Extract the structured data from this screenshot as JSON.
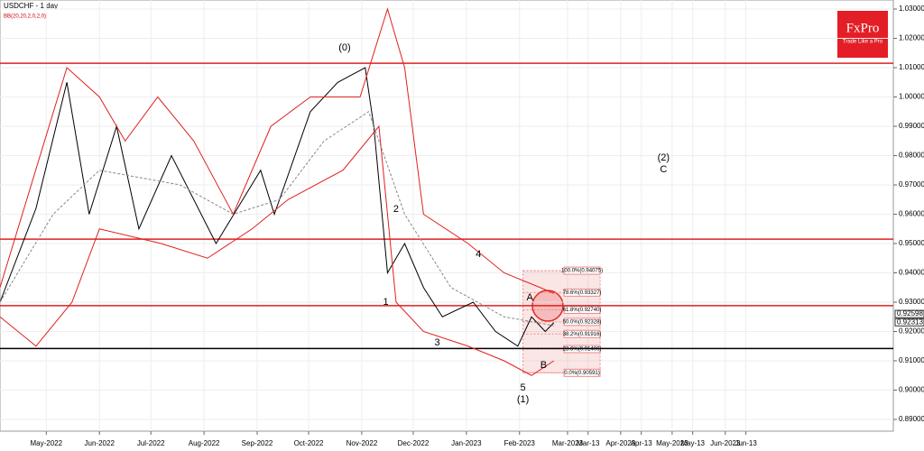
{
  "chart_data": {
    "type": "line",
    "title": "USDCHF - 1 day",
    "subtitle": "BB(20,20,2,0,2,0)",
    "logo": "FxPro",
    "logo_tagline": "Trade Like a Pro",
    "xlim": [
      3,
      524
    ],
    "ylim": [
      0.89,
      1.03
    ],
    "xticks": [
      {
        "value": 30,
        "label": "May-2022"
      },
      {
        "value": 61,
        "label": "Jun-2022"
      },
      {
        "value": 91,
        "label": "Jul-2022"
      },
      {
        "value": 122,
        "label": "Aug-2022"
      },
      {
        "value": 153,
        "label": "Sep-2022"
      },
      {
        "value": 183,
        "label": "Oct-2022"
      },
      {
        "value": 214,
        "label": "Nov-2022"
      },
      {
        "value": 244,
        "label": "Dec-2022"
      },
      {
        "value": 275,
        "label": "Jan-2023"
      },
      {
        "value": 306,
        "label": "Feb-2023"
      },
      {
        "value": 334,
        "label": "Mar-2023"
      },
      {
        "value": 346,
        "label": "Mar-13"
      },
      {
        "value": 365,
        "label": "Apr-2023"
      },
      {
        "value": 377,
        "label": "Apr-13"
      },
      {
        "value": 395,
        "label": "May-2023"
      },
      {
        "value": 407,
        "label": "May-13"
      },
      {
        "value": 426,
        "label": "Jun-2023"
      },
      {
        "value": 438,
        "label": "Jun-13"
      }
    ],
    "yticks": [
      {
        "value": 1.03,
        "label": "1.03000"
      },
      {
        "value": 1.02,
        "label": "1.02000"
      },
      {
        "value": 1.01,
        "label": "1.01000"
      },
      {
        "value": 1.0,
        "label": "1.00000"
      },
      {
        "value": 0.99,
        "label": "0.99000"
      },
      {
        "value": 0.98,
        "label": "0.98000"
      },
      {
        "value": 0.97,
        "label": "0.97000"
      },
      {
        "value": 0.96,
        "label": "0.96000"
      },
      {
        "value": 0.95,
        "label": "0.95000"
      },
      {
        "value": 0.94,
        "label": "0.94000"
      },
      {
        "value": 0.93,
        "label": "0.93000"
      },
      {
        "value": 0.92,
        "label": "0.92000"
      },
      {
        "value": 0.91,
        "label": "0.91000"
      },
      {
        "value": 0.9,
        "label": "0.90000"
      },
      {
        "value": 0.89,
        "label": "0.89000"
      }
    ],
    "grid": true,
    "series": [
      {
        "color": "#000000",
        "x": [
          3,
          24,
          42,
          55,
          71,
          84,
          103,
          129,
          155,
          163,
          184,
          200,
          216,
          221,
          229,
          239,
          250,
          261,
          279,
          292,
          305,
          313,
          321,
          326
        ],
        "values": [
          0.93,
          0.962,
          1.005,
          0.96,
          0.99,
          0.955,
          0.98,
          0.95,
          0.975,
          0.96,
          0.995,
          1.005,
          1.01,
          0.99,
          0.94,
          0.95,
          0.935,
          0.925,
          0.93,
          0.92,
          0.915,
          0.925,
          0.92,
          0.923
        ]
      },
      {
        "color": "#e02020",
        "x": [
          3,
          42,
          61,
          76,
          95,
          116,
          139,
          161,
          184,
          213,
          229,
          239,
          250,
          276,
          297,
          318,
          326
        ],
        "values": [
          0.935,
          1.01,
          1.0,
          0.985,
          1.0,
          0.985,
          0.96,
          0.99,
          1.0,
          1.0,
          1.03,
          1.01,
          0.96,
          0.95,
          0.94,
          0.935,
          0.933
        ]
      },
      {
        "color": "#e02020",
        "x": [
          3,
          24,
          45,
          61,
          97,
          124,
          150,
          171,
          203,
          224,
          234,
          250,
          276,
          297,
          313,
          326
        ],
        "values": [
          0.925,
          0.915,
          0.93,
          0.955,
          0.95,
          0.945,
          0.955,
          0.965,
          0.975,
          0.99,
          0.93,
          0.92,
          0.915,
          0.91,
          0.905,
          0.91
        ]
      },
      {
        "color": "#888888",
        "dashed": true,
        "x": [
          3,
          34,
          61,
          108,
          139,
          166,
          192,
          218,
          239,
          266,
          297,
          326
        ],
        "values": [
          0.93,
          0.96,
          0.975,
          0.97,
          0.96,
          0.965,
          0.985,
          0.995,
          0.96,
          0.935,
          0.925,
          0.922
        ]
      }
    ],
    "levels": [
      {
        "value": 1.0115,
        "color": "#e02020"
      },
      {
        "value": 0.9515,
        "color": "#e02020"
      },
      {
        "value": 0.9288,
        "color": "#e02020"
      },
      {
        "value": 0.9142,
        "color": "#000000"
      }
    ],
    "fib": {
      "x": [
        308,
        353
      ],
      "levels": [
        {
          "value": 0.94075,
          "label": "100.0%(0.94075)"
        },
        {
          "value": 0.93327,
          "label": "78.6%(0.93327)"
        },
        {
          "value": 0.9274,
          "label": "61.8%(0.92740)"
        },
        {
          "value": 0.92328,
          "label": "50.0%(0.92328)"
        },
        {
          "value": 0.91916,
          "label": "38.2%(0.91916)"
        },
        {
          "value": 0.914,
          "label": "23.6%(0.91406)"
        },
        {
          "value": 0.90591,
          "label": "0.0%(0.90591)"
        }
      ]
    },
    "price_labels": [
      {
        "value": 0.92598,
        "label": "0.92598"
      },
      {
        "value": 0.92313,
        "label": "0.92313"
      }
    ],
    "annotations": [
      {
        "text": "(0)",
        "x": 204,
        "y": 1.0168
      },
      {
        "text": "2",
        "x": 234,
        "y": 0.9617
      },
      {
        "text": "1",
        "x": 228,
        "y": 0.93
      },
      {
        "text": "3",
        "x": 258,
        "y": 0.9162
      },
      {
        "text": "4",
        "x": 282,
        "y": 0.9463
      },
      {
        "text": "5",
        "x": 308,
        "y": 0.9008
      },
      {
        "text": "(1)",
        "x": 308,
        "y": 0.8968
      },
      {
        "text": "(2)",
        "x": 390,
        "y": 0.9792
      },
      {
        "text": "C",
        "x": 390,
        "y": 0.9752
      },
      {
        "text": "A",
        "x": 312,
        "y": 0.9315
      },
      {
        "text": "B",
        "x": 320,
        "y": 0.9085
      }
    ]
  }
}
